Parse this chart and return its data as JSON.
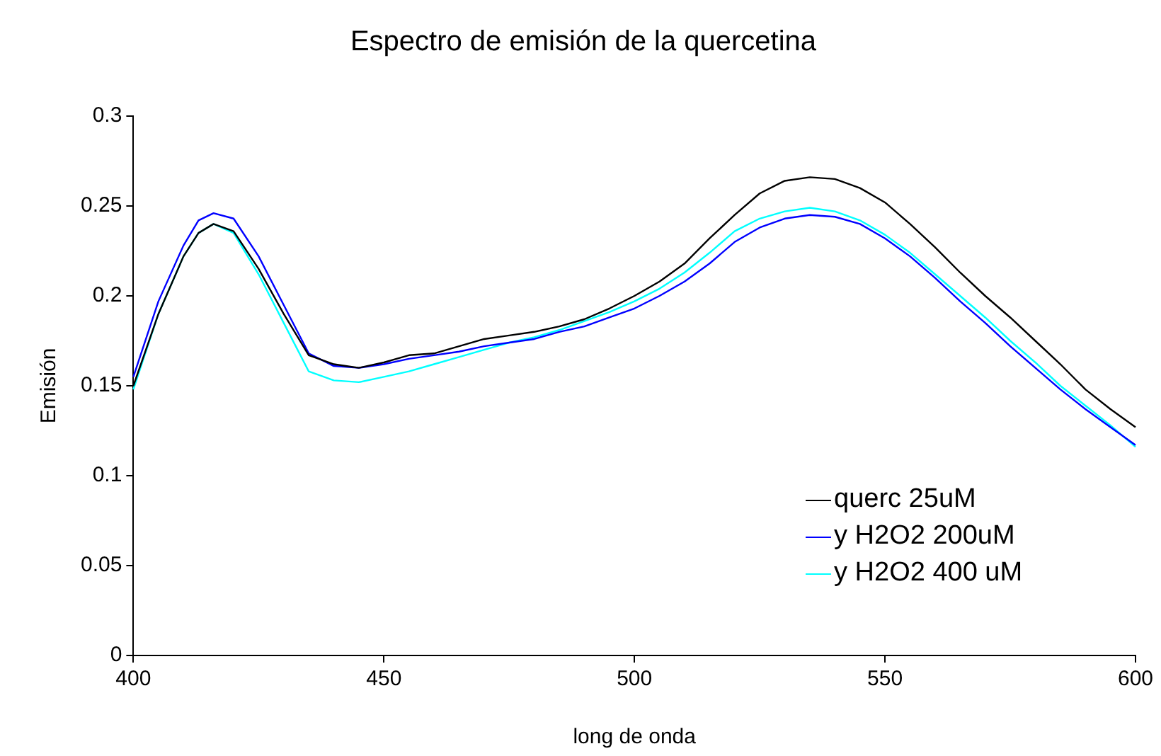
{
  "chart_data": {
    "type": "line",
    "title": "Espectro de emisión de la quercetina",
    "xlabel": "long de onda",
    "ylabel": "Emisión",
    "x": [
      400,
      405,
      410,
      413,
      416,
      420,
      425,
      430,
      435,
      440,
      445,
      450,
      455,
      460,
      465,
      470,
      475,
      480,
      485,
      490,
      495,
      500,
      505,
      510,
      515,
      520,
      525,
      530,
      535,
      540,
      545,
      550,
      555,
      560,
      565,
      570,
      575,
      580,
      585,
      590,
      595,
      600
    ],
    "xlim": [
      400,
      600
    ],
    "xticks": [
      400,
      450,
      500,
      550,
      600
    ],
    "ylim": [
      0,
      0.3
    ],
    "yticks": [
      0,
      0.05,
      0.1,
      0.15,
      0.2,
      0.25,
      0.3
    ],
    "grid": false,
    "legend": "bottom right",
    "marker": "none",
    "line_style": "solid",
    "series": [
      {
        "name": "querc 25uM",
        "color": "#000000",
        "values": [
          0.15,
          0.19,
          0.222,
          0.235,
          0.24,
          0.236,
          0.215,
          0.19,
          0.167,
          0.162,
          0.16,
          0.163,
          0.167,
          0.168,
          0.172,
          0.176,
          0.178,
          0.18,
          0.183,
          0.187,
          0.193,
          0.2,
          0.208,
          0.218,
          0.232,
          0.245,
          0.257,
          0.264,
          0.266,
          0.265,
          0.26,
          0.252,
          0.24,
          0.227,
          0.213,
          0.2,
          0.188,
          0.175,
          0.162,
          0.148,
          0.137,
          0.127
        ]
      },
      {
        "name": "y H2O2 200uM",
        "color": "#0000ff",
        "values": [
          0.155,
          0.197,
          0.228,
          0.242,
          0.246,
          0.243,
          0.222,
          0.195,
          0.168,
          0.161,
          0.16,
          0.162,
          0.165,
          0.167,
          0.169,
          0.172,
          0.174,
          0.176,
          0.18,
          0.183,
          0.188,
          0.193,
          0.2,
          0.208,
          0.218,
          0.23,
          0.238,
          0.243,
          0.245,
          0.244,
          0.24,
          0.232,
          0.222,
          0.21,
          0.197,
          0.185,
          0.172,
          0.16,
          0.148,
          0.137,
          0.127,
          0.117
        ]
      },
      {
        "name": "y H2O2 400 uM",
        "color": "#00ffff",
        "values": [
          0.148,
          0.19,
          0.222,
          0.235,
          0.24,
          0.235,
          0.212,
          0.185,
          0.158,
          0.153,
          0.152,
          0.155,
          0.158,
          0.162,
          0.166,
          0.17,
          0.174,
          0.177,
          0.181,
          0.186,
          0.191,
          0.197,
          0.204,
          0.213,
          0.224,
          0.236,
          0.243,
          0.247,
          0.249,
          0.247,
          0.242,
          0.234,
          0.224,
          0.212,
          0.2,
          0.188,
          0.175,
          0.163,
          0.15,
          0.139,
          0.128,
          0.116
        ]
      }
    ]
  }
}
